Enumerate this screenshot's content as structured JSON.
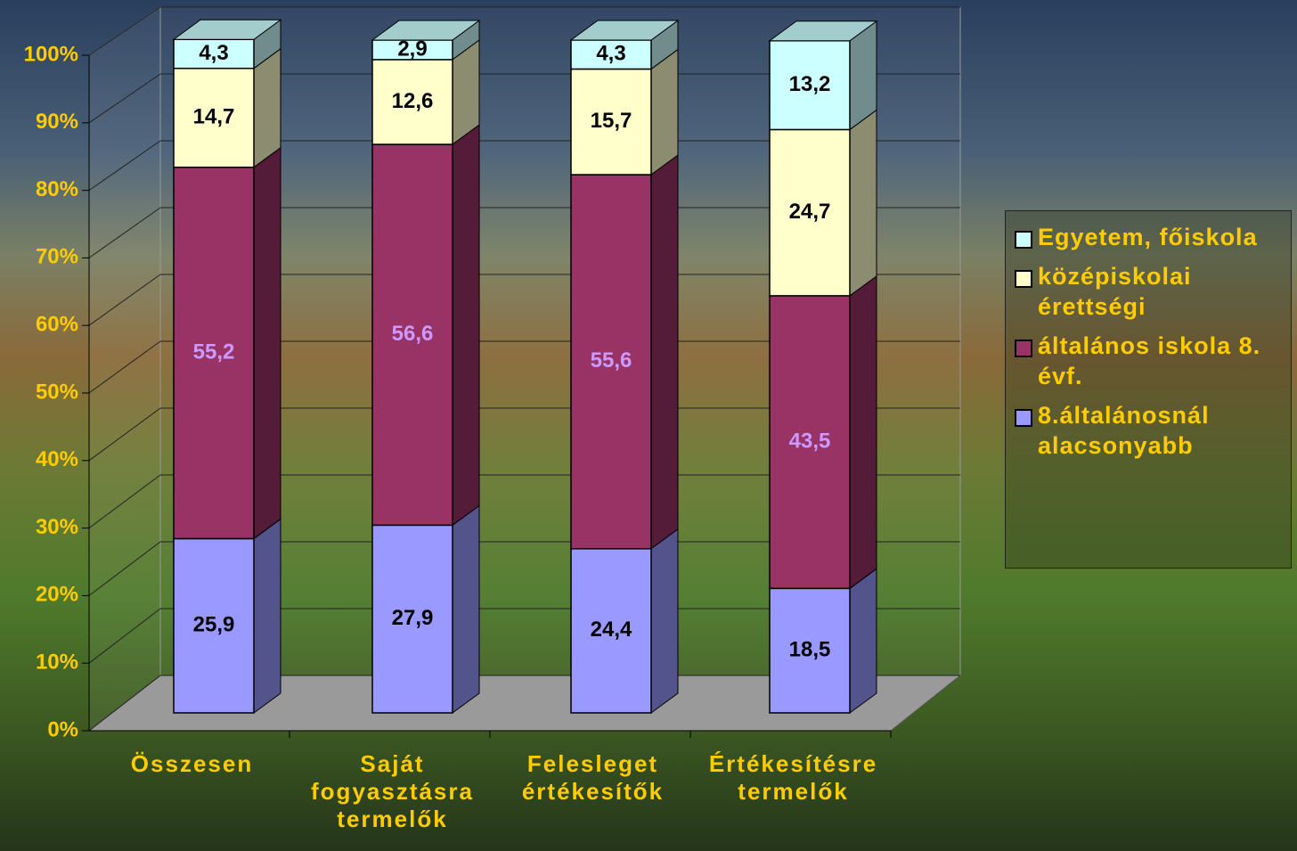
{
  "chart_data": {
    "type": "stacked_bar_3d",
    "categories": [
      "Összesen",
      "Saját fogyasztásra termelők",
      "Felesleget értékesítők",
      "Értékesítésre termelők"
    ],
    "series": [
      {
        "name": "8.általánosnál alacsonyabb",
        "color": "#9999ff",
        "label_color": "#000000",
        "values": [
          25.9,
          27.9,
          24.4,
          18.5
        ],
        "value_labels": [
          "25,9",
          "27,9",
          "24,4",
          "18,5"
        ]
      },
      {
        "name": "általános iskola 8. évf.",
        "color": "#993366",
        "label_color": "#cc99ff",
        "values": [
          55.2,
          56.6,
          55.6,
          43.5
        ],
        "value_labels": [
          "55,2",
          "56,6",
          "55,6",
          "43,5"
        ]
      },
      {
        "name": "középiskolai érettségi",
        "color": "#ffffcc",
        "label_color": "#000000",
        "values": [
          14.7,
          12.6,
          15.7,
          24.7
        ],
        "value_labels": [
          "14,7",
          "12,6",
          "15,7",
          "24,7"
        ]
      },
      {
        "name": "Egyetem, főiskola",
        "color": "#ccffff",
        "label_color": "#000000",
        "values": [
          4.3,
          2.9,
          4.3,
          13.2
        ],
        "value_labels": [
          "4,3",
          "2,9",
          "4,3",
          "13,2"
        ]
      }
    ],
    "ylim": [
      0,
      100
    ],
    "yticks": [
      {
        "value": 0,
        "label": "0%"
      },
      {
        "value": 10,
        "label": "10%"
      },
      {
        "value": 20,
        "label": "20%"
      },
      {
        "value": 30,
        "label": "30%"
      },
      {
        "value": 40,
        "label": "40%"
      },
      {
        "value": 50,
        "label": "50%"
      },
      {
        "value": 60,
        "label": "60%"
      },
      {
        "value": 70,
        "label": "70%"
      },
      {
        "value": 80,
        "label": "80%"
      },
      {
        "value": 90,
        "label": "90%"
      },
      {
        "value": 100,
        "label": "100%"
      }
    ],
    "grid": true,
    "legend": "right"
  }
}
